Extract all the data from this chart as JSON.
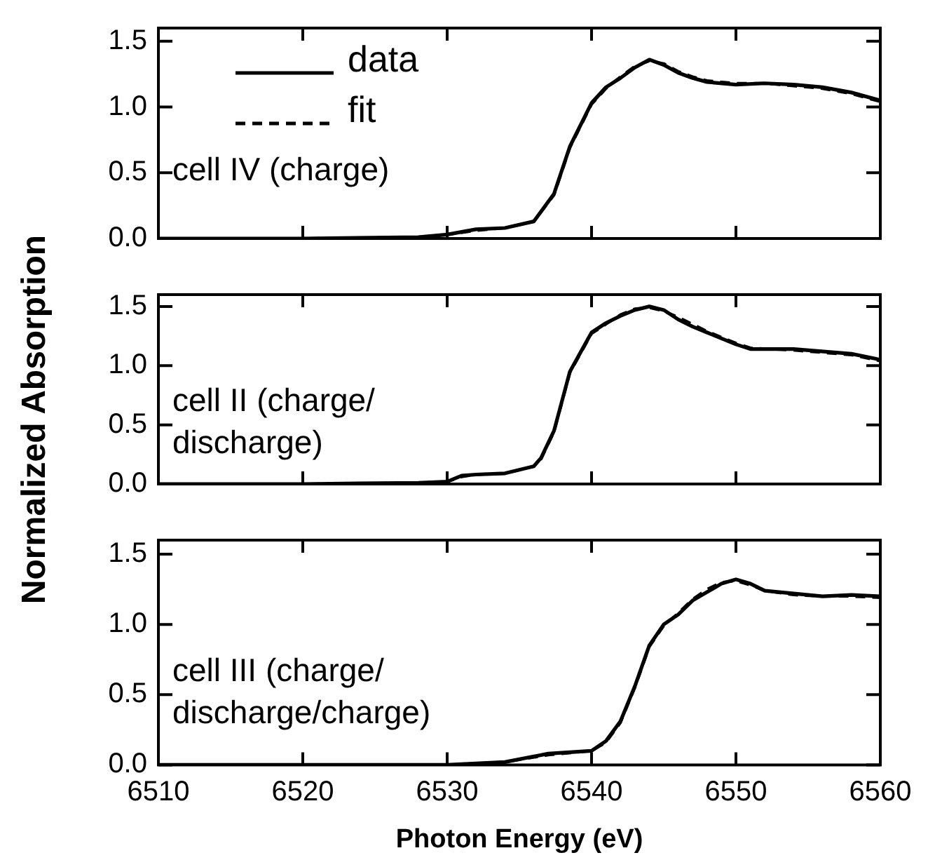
{
  "chart_data": [
    {
      "type": "line",
      "annotations": [
        "cell IV (charge)"
      ],
      "legend": "top left",
      "tick_labels": "y",
      "xlim": [
        6510,
        6560
      ],
      "xticks": [
        6510,
        6520,
        6530,
        6540,
        6550,
        6560
      ],
      "ylim": [
        0,
        1.6
      ],
      "yticks": [
        {
          "value": 0,
          "label": "0.0"
        },
        {
          "value": 0.5,
          "label": "0.5"
        },
        {
          "value": 1,
          "label": "1.0"
        },
        {
          "value": 1.5,
          "label": "1.5"
        }
      ],
      "series": [
        {
          "name": "data",
          "color": "#000000",
          "line_style": "solid",
          "x": [
            6510,
            6520,
            6528,
            6530,
            6532,
            6534,
            6536,
            6537.4,
            6538.5,
            6540,
            6541,
            6542,
            6543,
            6544,
            6545,
            6546,
            6547,
            6548,
            6550,
            6552,
            6554,
            6556,
            6558,
            6560
          ],
          "values": [
            0,
            0,
            0.01,
            0.03,
            0.07,
            0.08,
            0.13,
            0.34,
            0.7,
            1.03,
            1.15,
            1.22,
            1.3,
            1.36,
            1.32,
            1.26,
            1.22,
            1.19,
            1.17,
            1.18,
            1.17,
            1.15,
            1.11,
            1.05
          ]
        },
        {
          "name": "fit",
          "color": "#000000",
          "line_style": "dashed",
          "x": [
            6510,
            6520,
            6528,
            6530,
            6532,
            6534,
            6536,
            6537.4,
            6538.5,
            6540,
            6541,
            6542,
            6543,
            6544,
            6545,
            6546,
            6547,
            6548,
            6550,
            6552,
            6554,
            6556,
            6558,
            6560
          ],
          "values": [
            0,
            0,
            0.01,
            0.03,
            0.06,
            0.08,
            0.13,
            0.33,
            0.69,
            1.02,
            1.14,
            1.23,
            1.31,
            1.35,
            1.33,
            1.27,
            1.23,
            1.2,
            1.18,
            1.18,
            1.16,
            1.14,
            1.1,
            1.04
          ]
        }
      ]
    },
    {
      "type": "line",
      "annotations": [
        "cell II (charge/discharge)"
      ],
      "tick_labels": "y",
      "ylabel": "Normalized Absorption",
      "xlim": [
        6510,
        6560
      ],
      "xticks": [
        6510,
        6520,
        6530,
        6540,
        6550,
        6560
      ],
      "ylim": [
        0,
        1.6
      ],
      "yticks": [
        {
          "value": 0,
          "label": "0.0"
        },
        {
          "value": 0.5,
          "label": "0.5"
        },
        {
          "value": 1,
          "label": "1.0"
        },
        {
          "value": 1.5,
          "label": "1.5"
        }
      ],
      "series": [
        {
          "color": "#000000",
          "line_style": "solid",
          "x": [
            6510,
            6520,
            6528,
            6530,
            6531,
            6532,
            6534,
            6536,
            6536.5,
            6537.4,
            6538.5,
            6540,
            6541,
            6542,
            6543,
            6544,
            6545,
            6546,
            6547,
            6548,
            6550,
            6551,
            6554,
            6558,
            6560
          ],
          "values": [
            0,
            0,
            0.01,
            0.02,
            0.07,
            0.08,
            0.09,
            0.15,
            0.22,
            0.45,
            0.95,
            1.28,
            1.36,
            1.42,
            1.47,
            1.5,
            1.47,
            1.39,
            1.33,
            1.28,
            1.18,
            1.14,
            1.14,
            1.1,
            1.05
          ]
        },
        {
          "color": "#000000",
          "line_style": "dashed",
          "x": [
            6510,
            6520,
            6528,
            6530,
            6531,
            6532,
            6534,
            6536,
            6536.5,
            6537.4,
            6538.5,
            6540,
            6541,
            6542,
            6543,
            6544,
            6545,
            6546,
            6547,
            6548,
            6550,
            6551,
            6554,
            6558,
            6560
          ],
          "values": [
            0,
            0,
            0.01,
            0.02,
            0.06,
            0.08,
            0.09,
            0.15,
            0.21,
            0.44,
            0.94,
            1.27,
            1.35,
            1.43,
            1.48,
            1.49,
            1.46,
            1.41,
            1.35,
            1.29,
            1.19,
            1.15,
            1.13,
            1.09,
            1.04
          ]
        }
      ]
    },
    {
      "type": "line",
      "annotations": [
        "cell III (charge/discharge/charge)"
      ],
      "xlabel": "Photon Energy (eV)",
      "xlim": [
        6510,
        6560
      ],
      "xticks": [
        6510,
        6520,
        6530,
        6540,
        6550,
        6560
      ],
      "ylim": [
        0,
        1.6
      ],
      "yticks": [
        {
          "value": 0,
          "label": "0.0"
        },
        {
          "value": 0.5,
          "label": "0.5"
        },
        {
          "value": 1,
          "label": "1.0"
        },
        {
          "value": 1.5,
          "label": "1.5"
        }
      ],
      "series": [
        {
          "color": "#000000",
          "line_style": "solid",
          "x": [
            6510,
            6520,
            6530,
            6534,
            6537,
            6540,
            6541,
            6542,
            6543,
            6544,
            6545,
            6546,
            6547,
            6548,
            6549,
            6550,
            6551,
            6552,
            6554,
            6556,
            6558,
            6560
          ],
          "values": [
            0,
            0,
            0,
            0.02,
            0.08,
            0.1,
            0.17,
            0.31,
            0.56,
            0.85,
            1.0,
            1.07,
            1.17,
            1.23,
            1.29,
            1.32,
            1.29,
            1.24,
            1.22,
            1.2,
            1.21,
            1.2
          ]
        },
        {
          "color": "#000000",
          "line_style": "dashed",
          "x": [
            6510,
            6520,
            6530,
            6534,
            6537,
            6540,
            6541,
            6542,
            6543,
            6544,
            6545,
            6546,
            6547,
            6548,
            6549,
            6550,
            6551,
            6552,
            6554,
            6556,
            6558,
            6560
          ],
          "values": [
            0,
            0,
            0,
            0.02,
            0.07,
            0.1,
            0.16,
            0.3,
            0.55,
            0.84,
            0.99,
            1.08,
            1.18,
            1.25,
            1.3,
            1.31,
            1.28,
            1.24,
            1.21,
            1.2,
            1.2,
            1.19
          ]
        }
      ]
    }
  ]
}
